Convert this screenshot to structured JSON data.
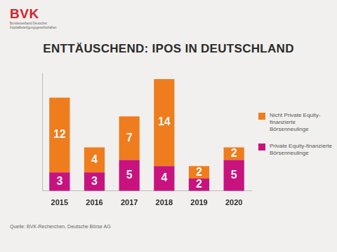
{
  "logo": {
    "text": "BVK",
    "subtitle": "Bundesverband Deutscher Kapitalbeteiligungsgesellschaften"
  },
  "source": "Quelle: BVK-Recherchen, Deutsche Börse AG",
  "chart_data": {
    "type": "bar",
    "title": "ENTTÄUSCHEND: IPOS IN DEUTSCHLAND",
    "categories": [
      "2015",
      "2016",
      "2017",
      "2018",
      "2019",
      "2020"
    ],
    "series": [
      {
        "name": "Private Equity-finanzierte Börsenneulinge",
        "color": "#c8137f",
        "values": [
          3,
          3,
          5,
          4,
          2,
          5
        ]
      },
      {
        "name": "Nicht Private Equity-finanzierte Börsenneulinge",
        "color": "#ef7d1d",
        "values": [
          12,
          4,
          7,
          14,
          2,
          2
        ]
      }
    ],
    "stacked": true,
    "data_labels": true,
    "legend": "right",
    "tick_labels": "x",
    "grid": false,
    "ylim": [
      0,
      19
    ]
  }
}
